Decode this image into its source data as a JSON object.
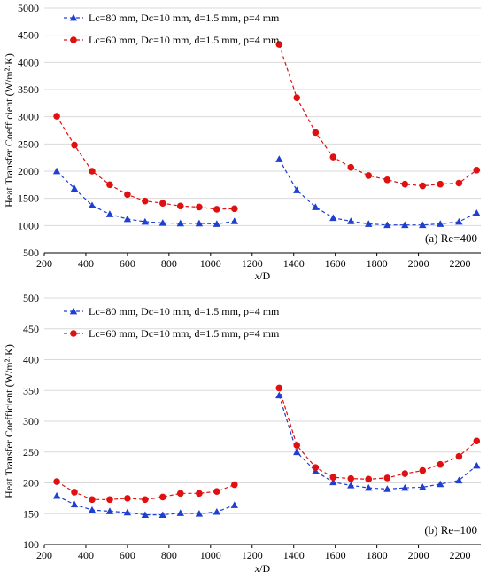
{
  "chart_data": [
    {
      "type": "line",
      "ylabel": "Heat Transfer Coefficient (W/m²·K)",
      "xlabel": "x/D",
      "xlim": [
        200,
        2300
      ],
      "ylim": [
        500,
        5000
      ],
      "xticks": [
        200,
        400,
        600,
        800,
        1000,
        1200,
        1400,
        1600,
        1800,
        2000,
        2200
      ],
      "yticks": [
        500,
        1000,
        1500,
        2000,
        2500,
        3000,
        3500,
        4000,
        4500,
        5000
      ],
      "grid": "horizontal",
      "legend_position": "top-left",
      "annotation": "(a) Re=400",
      "series": [
        {
          "name": "Lc=80 mm, Dc=10 mm, d=1.5 mm, p=4 mm",
          "color": "#1f3fd0",
          "marker": "triangle",
          "segments": [
            {
              "x": [
                260,
                345,
                430,
                515,
                600,
                685,
                770,
                855,
                945,
                1030,
                1115
              ],
              "y": [
                2000,
                1680,
                1370,
                1210,
                1120,
                1070,
                1050,
                1040,
                1040,
                1030,
                1080
              ]
            },
            {
              "x": [
                1330,
                1415,
                1505,
                1590,
                1675,
                1760,
                1850,
                1935,
                2020,
                2105,
                2195,
                2280
              ],
              "y": [
                2220,
                1650,
                1340,
                1140,
                1080,
                1030,
                1010,
                1010,
                1010,
                1030,
                1070,
                1230
              ]
            }
          ]
        },
        {
          "name": "Lc=60 mm, Dc=10 mm, d=1.5 mm, p=4 mm",
          "color": "#e01010",
          "marker": "circle",
          "segments": [
            {
              "x": [
                260,
                345,
                430,
                515,
                600,
                685,
                770,
                855,
                945,
                1030,
                1115
              ],
              "y": [
                3010,
                2480,
                2000,
                1750,
                1570,
                1450,
                1410,
                1360,
                1340,
                1300,
                1310
              ]
            },
            {
              "x": [
                1330,
                1415,
                1505,
                1590,
                1675,
                1760,
                1850,
                1935,
                2020,
                2105,
                2195,
                2280
              ],
              "y": [
                4330,
                3350,
                2710,
                2260,
                2070,
                1920,
                1840,
                1760,
                1730,
                1760,
                1780,
                2020
              ]
            }
          ]
        }
      ]
    },
    {
      "type": "line",
      "ylabel": "Heat Transfer Coefficient (W/m²·K)",
      "xlabel": "x/D",
      "xlim": [
        200,
        2300
      ],
      "ylim": [
        100,
        500
      ],
      "xticks": [
        200,
        400,
        600,
        800,
        1000,
        1200,
        1400,
        1600,
        1800,
        2000,
        2200
      ],
      "yticks": [
        100,
        150,
        200,
        250,
        300,
        350,
        400,
        450,
        500
      ],
      "grid": "horizontal",
      "legend_position": "top-left",
      "annotation": "(b) Re=100",
      "series": [
        {
          "name": "Lc=80 mm, Dc=10 mm, d=1.5 mm, p=4 mm",
          "color": "#1f3fd0",
          "marker": "triangle",
          "segments": [
            {
              "x": [
                260,
                345,
                430,
                515,
                600,
                685,
                770,
                855,
                945,
                1030,
                1115
              ],
              "y": [
                179,
                165,
                156,
                154,
                152,
                148,
                148,
                151,
                150,
                153,
                164
              ]
            },
            {
              "x": [
                1330,
                1415,
                1505,
                1590,
                1675,
                1760,
                1850,
                1935,
                2020,
                2105,
                2195,
                2280
              ],
              "y": [
                342,
                250,
                219,
                201,
                196,
                192,
                190,
                192,
                193,
                198,
                204,
                228
              ]
            }
          ]
        },
        {
          "name": "Lc=60 mm, Dc=10 mm, d=1.5 mm, p=4 mm",
          "color": "#e01010",
          "marker": "circle",
          "segments": [
            {
              "x": [
                260,
                345,
                430,
                515,
                600,
                685,
                770,
                855,
                945,
                1030,
                1115
              ],
              "y": [
                202,
                185,
                173,
                173,
                175,
                173,
                177,
                183,
                183,
                186,
                197
              ]
            },
            {
              "x": [
                1330,
                1415,
                1505,
                1590,
                1675,
                1760,
                1850,
                1935,
                2020,
                2105,
                2195,
                2280
              ],
              "y": [
                354,
                261,
                225,
                209,
                207,
                206,
                208,
                215,
                220,
                230,
                243,
                268
              ]
            }
          ]
        }
      ]
    }
  ]
}
